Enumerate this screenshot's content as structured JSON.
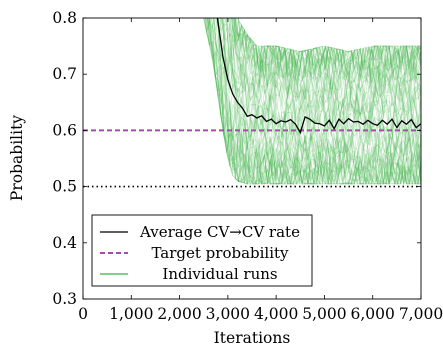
{
  "chart_data": {
    "type": "line",
    "xlabel": "Iterations",
    "ylabel": "Probability",
    "xlim": [
      0,
      7000
    ],
    "ylim": [
      0.3,
      0.8
    ],
    "x_ticks": [
      0,
      1000,
      2000,
      3000,
      4000,
      5000,
      6000,
      7000
    ],
    "x_tick_labels": [
      "0",
      "1,000",
      "2,000",
      "3,000",
      "4,000",
      "5,000",
      "6,000",
      "7,000"
    ],
    "y_ticks": [
      0.3,
      0.4,
      0.5,
      0.6,
      0.7,
      0.8
    ],
    "y_tick_labels": [
      "0.3",
      "0.4",
      "0.5",
      "0.6",
      "0.7",
      "0.8"
    ],
    "grid": false,
    "legend_position": "bottom-left",
    "series": [
      {
        "name": "Average CV→CV rate",
        "style": "solid",
        "color": "#000000",
        "x": [
          2500,
          2700,
          2800,
          2900,
          3000,
          3100,
          3200,
          3300,
          3400,
          3500,
          3600,
          3700,
          3800,
          3900,
          4000,
          4100,
          4200,
          4300,
          4400,
          4500,
          4600,
          4700,
          4800,
          4900,
          5000,
          5100,
          5200,
          5300,
          5400,
          5500,
          5600,
          5700,
          5800,
          5900,
          6000,
          6100,
          6200,
          6300,
          6400,
          6500,
          6600,
          6700,
          6800,
          6900,
          7000
        ],
        "y": [
          0.95,
          0.85,
          0.79,
          0.73,
          0.69,
          0.665,
          0.65,
          0.64,
          0.625,
          0.628,
          0.622,
          0.626,
          0.616,
          0.62,
          0.612,
          0.617,
          0.615,
          0.619,
          0.611,
          0.596,
          0.624,
          0.62,
          0.613,
          0.612,
          0.608,
          0.618,
          0.603,
          0.62,
          0.612,
          0.621,
          0.615,
          0.616,
          0.611,
          0.618,
          0.612,
          0.609,
          0.618,
          0.611,
          0.62,
          0.605,
          0.617,
          0.611,
          0.619,
          0.605,
          0.612
        ]
      },
      {
        "name": "Target probability",
        "style": "dashed",
        "color": "#a64ca6",
        "x": [
          0,
          7000
        ],
        "y": [
          0.6,
          0.6
        ]
      },
      {
        "name": "Individual runs",
        "style": "band",
        "color": "#3cb043",
        "x": [
          2500,
          2700,
          2800,
          2900,
          3000,
          3100,
          3200,
          3400,
          3600,
          4000,
          4500,
          5000,
          5500,
          6000,
          6500,
          7000
        ],
        "y_low": [
          0.8,
          0.72,
          0.66,
          0.6,
          0.55,
          0.52,
          0.51,
          0.505,
          0.505,
          0.505,
          0.505,
          0.505,
          0.505,
          0.505,
          0.505,
          0.505
        ],
        "y_high": [
          1.0,
          1.0,
          1.0,
          0.95,
          0.9,
          0.85,
          0.8,
          0.77,
          0.75,
          0.75,
          0.74,
          0.75,
          0.74,
          0.75,
          0.75,
          0.75
        ]
      },
      {
        "name": "",
        "style": "dotted",
        "color": "#000000",
        "x": [
          0,
          7000
        ],
        "y": [
          0.5,
          0.5
        ]
      }
    ]
  }
}
